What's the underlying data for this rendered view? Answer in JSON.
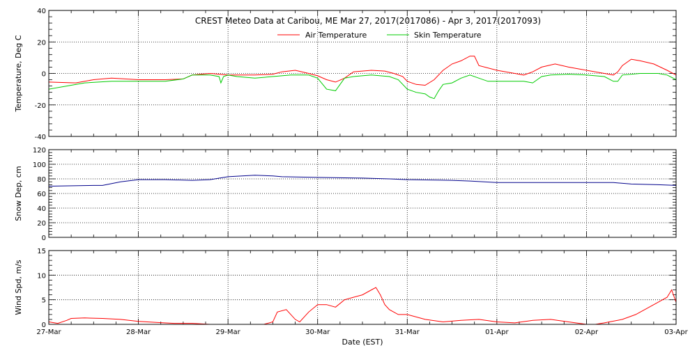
{
  "chart_data": {
    "type": "line",
    "title": "CREST Meteo Data at Caribou, ME   Mar 27, 2017(2017086) - Apr  3, 2017(2017093)",
    "xlabel": "Date (EST)",
    "x_ticks": [
      "27-Mar",
      "28-Mar",
      "29-Mar",
      "30-Mar",
      "31-Mar",
      "01-Apr",
      "02-Apr",
      "03-Apr"
    ],
    "x_range_days": [
      0,
      7
    ],
    "legend_position": "top-center",
    "grid": true,
    "panels": [
      {
        "ylabel": "Temperature, Deg C",
        "ylim": [
          -40,
          40
        ],
        "y_ticks": [
          -40,
          -20,
          0,
          20,
          40
        ],
        "series": [
          {
            "name": "Air Temperature",
            "color": "#ff0000",
            "points": [
              [
                0,
                -5.5
              ],
              [
                0.3,
                -6
              ],
              [
                0.5,
                -4
              ],
              [
                0.7,
                -3
              ],
              [
                1.0,
                -4
              ],
              [
                1.3,
                -4
              ],
              [
                1.5,
                -3.5
              ],
              [
                1.6,
                -1
              ],
              [
                1.8,
                0
              ],
              [
                2.0,
                -1
              ],
              [
                2.3,
                -1
              ],
              [
                2.5,
                -0.5
              ],
              [
                2.6,
                1
              ],
              [
                2.75,
                2
              ],
              [
                2.9,
                0
              ],
              [
                3.0,
                -1.5
              ],
              [
                3.1,
                -4
              ],
              [
                3.2,
                -5.5
              ],
              [
                3.3,
                -3
              ],
              [
                3.4,
                1
              ],
              [
                3.6,
                2
              ],
              [
                3.75,
                1.5
              ],
              [
                3.85,
                0
              ],
              [
                3.95,
                -2
              ],
              [
                4.0,
                -5
              ],
              [
                4.1,
                -7
              ],
              [
                4.2,
                -7.5
              ],
              [
                4.3,
                -4
              ],
              [
                4.4,
                2
              ],
              [
                4.5,
                6
              ],
              [
                4.6,
                8
              ],
              [
                4.7,
                11
              ],
              [
                4.75,
                11
              ],
              [
                4.8,
                5
              ],
              [
                5.0,
                2
              ],
              [
                5.2,
                0
              ],
              [
                5.3,
                -1
              ],
              [
                5.4,
                1
              ],
              [
                5.5,
                4
              ],
              [
                5.65,
                6
              ],
              [
                5.8,
                4
              ],
              [
                6.0,
                2
              ],
              [
                6.2,
                0
              ],
              [
                6.3,
                -1
              ],
              [
                6.35,
                1
              ],
              [
                6.4,
                5
              ],
              [
                6.5,
                9
              ],
              [
                6.6,
                8
              ],
              [
                6.75,
                6
              ],
              [
                6.9,
                2
              ],
              [
                7.0,
                -1
              ]
            ]
          },
          {
            "name": "Skin Temperature",
            "color": "#00cc00",
            "points": [
              [
                0,
                -10
              ],
              [
                0.2,
                -8
              ],
              [
                0.4,
                -6
              ],
              [
                0.7,
                -5
              ],
              [
                1.0,
                -5
              ],
              [
                1.3,
                -5
              ],
              [
                1.5,
                -3.5
              ],
              [
                1.6,
                -1
              ],
              [
                1.8,
                -1
              ],
              [
                1.9,
                -2
              ],
              [
                1.92,
                -6
              ],
              [
                1.95,
                -2
              ],
              [
                2.0,
                -1
              ],
              [
                2.1,
                -2
              ],
              [
                2.3,
                -3
              ],
              [
                2.5,
                -2
              ],
              [
                2.7,
                -1
              ],
              [
                2.9,
                -1
              ],
              [
                3.0,
                -3
              ],
              [
                3.1,
                -10
              ],
              [
                3.2,
                -11
              ],
              [
                3.25,
                -7
              ],
              [
                3.3,
                -3
              ],
              [
                3.4,
                -2
              ],
              [
                3.6,
                -1
              ],
              [
                3.8,
                -2
              ],
              [
                3.9,
                -4
              ],
              [
                4.0,
                -10
              ],
              [
                4.1,
                -12
              ],
              [
                4.2,
                -13
              ],
              [
                4.25,
                -15
              ],
              [
                4.3,
                -16
              ],
              [
                4.35,
                -11
              ],
              [
                4.4,
                -7
              ],
              [
                4.5,
                -6
              ],
              [
                4.6,
                -3
              ],
              [
                4.7,
                -1
              ],
              [
                4.8,
                -3
              ],
              [
                4.9,
                -5
              ],
              [
                5.0,
                -5
              ],
              [
                5.3,
                -5
              ],
              [
                5.4,
                -6
              ],
              [
                5.5,
                -2
              ],
              [
                5.6,
                -1
              ],
              [
                5.8,
                -0.5
              ],
              [
                6.0,
                -1
              ],
              [
                6.2,
                -2
              ],
              [
                6.3,
                -5
              ],
              [
                6.35,
                -5
              ],
              [
                6.4,
                -1
              ],
              [
                6.6,
                0
              ],
              [
                6.8,
                0
              ],
              [
                6.9,
                -1
              ],
              [
                7.0,
                -4
              ]
            ]
          }
        ]
      },
      {
        "ylabel": "Snow Dep, cm",
        "ylim": [
          0,
          120
        ],
        "y_ticks": [
          0,
          20,
          40,
          60,
          80,
          100,
          120
        ],
        "series": [
          {
            "color": "#00008b",
            "points": [
              [
                0,
                70
              ],
              [
                0.5,
                71
              ],
              [
                0.6,
                71
              ],
              [
                0.8,
                76
              ],
              [
                1.0,
                79
              ],
              [
                1.3,
                79
              ],
              [
                1.6,
                78
              ],
              [
                1.8,
                79
              ],
              [
                2.0,
                83
              ],
              [
                2.3,
                85
              ],
              [
                2.5,
                84
              ],
              [
                2.6,
                83
              ],
              [
                3.0,
                82
              ],
              [
                3.5,
                81
              ],
              [
                3.8,
                80
              ],
              [
                4.0,
                79
              ],
              [
                4.5,
                78
              ],
              [
                4.7,
                77
              ],
              [
                5.0,
                75
              ],
              [
                5.5,
                75
              ],
              [
                6.0,
                75
              ],
              [
                6.3,
                75
              ],
              [
                6.5,
                73
              ],
              [
                6.8,
                72
              ],
              [
                7.0,
                71
              ]
            ]
          }
        ]
      },
      {
        "ylabel": "Wind Spd, m/s",
        "ylim": [
          0,
          15
        ],
        "y_ticks": [
          0,
          5,
          10,
          15
        ],
        "series": [
          {
            "color": "#ff0000",
            "points": [
              [
                0,
                0.5
              ],
              [
                0.1,
                0.2
              ],
              [
                0.2,
                0.8
              ],
              [
                0.25,
                1.2
              ],
              [
                0.4,
                1.3
              ],
              [
                0.6,
                1.2
              ],
              [
                0.8,
                1.0
              ],
              [
                1.0,
                0.6
              ],
              [
                1.2,
                0.4
              ],
              [
                1.4,
                0.2
              ],
              [
                1.6,
                0.2
              ],
              [
                1.8,
                0
              ],
              [
                2.0,
                0
              ],
              [
                2.2,
                0
              ],
              [
                2.4,
                0
              ],
              [
                2.5,
                0.5
              ],
              [
                2.55,
                2.5
              ],
              [
                2.65,
                3
              ],
              [
                2.75,
                1
              ],
              [
                2.8,
                0.5
              ],
              [
                2.9,
                2.5
              ],
              [
                3.0,
                4
              ],
              [
                3.1,
                4
              ],
              [
                3.2,
                3.5
              ],
              [
                3.3,
                5
              ],
              [
                3.4,
                5.5
              ],
              [
                3.5,
                6
              ],
              [
                3.6,
                7
              ],
              [
                3.65,
                7.5
              ],
              [
                3.7,
                6
              ],
              [
                3.75,
                4
              ],
              [
                3.8,
                3
              ],
              [
                3.9,
                2
              ],
              [
                4.0,
                2
              ],
              [
                4.2,
                1
              ],
              [
                4.4,
                0.5
              ],
              [
                4.6,
                0.8
              ],
              [
                4.8,
                1
              ],
              [
                5.0,
                0.5
              ],
              [
                5.2,
                0.3
              ],
              [
                5.4,
                0.8
              ],
              [
                5.6,
                1
              ],
              [
                5.8,
                0.5
              ],
              [
                6.0,
                0
              ],
              [
                6.1,
                0
              ],
              [
                6.2,
                0.3
              ],
              [
                6.4,
                1
              ],
              [
                6.55,
                2
              ],
              [
                6.7,
                3.5
              ],
              [
                6.8,
                4.5
              ],
              [
                6.9,
                5.5
              ],
              [
                6.95,
                7
              ],
              [
                7.0,
                4.5
              ]
            ]
          }
        ]
      }
    ]
  }
}
